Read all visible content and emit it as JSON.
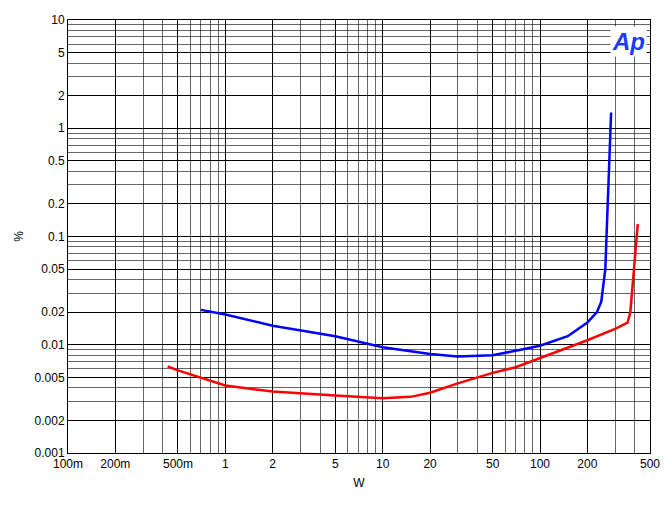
{
  "chart_data": {
    "type": "line",
    "x_label": "W",
    "y_label": "%",
    "annotation": "Ap",
    "log": true,
    "grid": true,
    "xlim": [
      0.1,
      500
    ],
    "ylim": [
      0.001,
      10
    ],
    "xticks": [
      {
        "value": 0.1,
        "label": "100m"
      },
      {
        "value": 0.2,
        "label": "200m"
      },
      {
        "value": 0.5,
        "label": "500m"
      },
      1,
      2,
      5,
      10,
      20,
      50,
      100,
      200,
      500
    ],
    "yticks": [
      0.001,
      0.002,
      0.005,
      0.01,
      0.02,
      0.05,
      0.1,
      0.2,
      0.5,
      1,
      2,
      5,
      10
    ],
    "series": [
      {
        "color": "#0000ff",
        "x": [
          0.7,
          1,
          2,
          5,
          10,
          20,
          30,
          50,
          70,
          100,
          150,
          200,
          230,
          245,
          260,
          270,
          280,
          283
        ],
        "values": [
          0.021,
          0.019,
          0.015,
          0.012,
          0.0095,
          0.0082,
          0.0078,
          0.008,
          0.0088,
          0.0098,
          0.012,
          0.016,
          0.02,
          0.025,
          0.05,
          0.2,
          0.8,
          1.4
        ]
      },
      {
        "color": "#ff0000",
        "x": [
          0.43,
          0.5,
          1,
          2,
          5,
          10,
          15,
          20,
          30,
          50,
          70,
          100,
          200,
          300,
          360,
          375,
          390,
          410,
          418
        ],
        "values": [
          0.0063,
          0.0058,
          0.0042,
          0.0037,
          0.0034,
          0.0032,
          0.0033,
          0.0036,
          0.0044,
          0.0055,
          0.0062,
          0.0075,
          0.011,
          0.014,
          0.016,
          0.02,
          0.04,
          0.1,
          0.13
        ]
      }
    ]
  }
}
